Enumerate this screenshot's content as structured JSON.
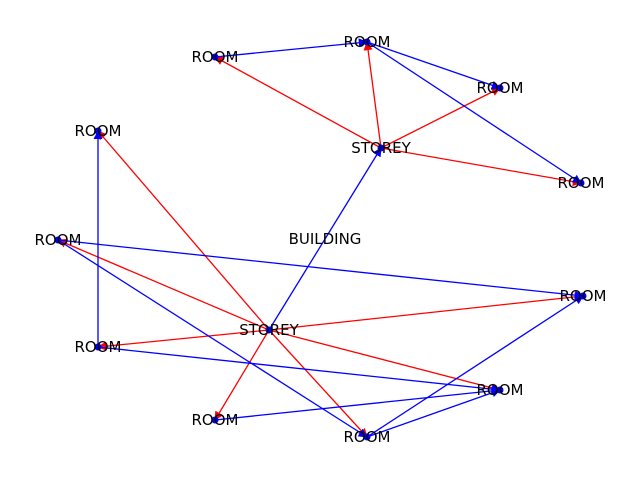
{
  "diagram_title": "",
  "colors": {
    "contains_edge": "#ff0000",
    "adjacent_edge": "#0000ff",
    "node_dot": "#0000ff",
    "label": "#000000",
    "background": "#ffffff"
  },
  "nodes": [
    {
      "id": "building",
      "label": "BUILDING"
    },
    {
      "id": "storey-1",
      "label": "STOREY"
    },
    {
      "id": "storey-2",
      "label": "STOREY"
    },
    {
      "id": "room-1",
      "label": "ROOM"
    },
    {
      "id": "room-2",
      "label": "ROOM"
    },
    {
      "id": "room-3",
      "label": "ROOM"
    },
    {
      "id": "room-4",
      "label": "ROOM"
    },
    {
      "id": "room-5",
      "label": "ROOM"
    },
    {
      "id": "room-6",
      "label": "ROOM"
    },
    {
      "id": "room-7",
      "label": "ROOM"
    },
    {
      "id": "room-8",
      "label": "ROOM"
    },
    {
      "id": "room-9",
      "label": "ROOM"
    },
    {
      "id": "room-10",
      "label": "ROOM"
    },
    {
      "id": "room-11",
      "label": "ROOM"
    }
  ],
  "edges": [
    {
      "from": "storey-1",
      "to": "room-1",
      "kind": "contains"
    },
    {
      "from": "storey-1",
      "to": "room-2",
      "kind": "contains"
    },
    {
      "from": "storey-1",
      "to": "room-3",
      "kind": "contains"
    },
    {
      "from": "storey-1",
      "to": "room-4",
      "kind": "contains"
    },
    {
      "from": "storey-2",
      "to": "room-5",
      "kind": "contains"
    },
    {
      "from": "storey-2",
      "to": "room-6",
      "kind": "contains"
    },
    {
      "from": "storey-2",
      "to": "room-7",
      "kind": "contains"
    },
    {
      "from": "storey-2",
      "to": "room-8",
      "kind": "contains"
    },
    {
      "from": "storey-2",
      "to": "room-9",
      "kind": "contains"
    },
    {
      "from": "storey-2",
      "to": "room-10",
      "kind": "contains"
    },
    {
      "from": "storey-2",
      "to": "room-11",
      "kind": "contains"
    },
    {
      "from": "storey-2",
      "to": "storey-1",
      "kind": "adjacent"
    },
    {
      "from": "room-2",
      "to": "room-1",
      "kind": "adjacent"
    },
    {
      "from": "room-1",
      "to": "room-3",
      "kind": "adjacent"
    },
    {
      "from": "room-1",
      "to": "room-4",
      "kind": "adjacent"
    },
    {
      "from": "room-7",
      "to": "room-5",
      "kind": "adjacent"
    },
    {
      "from": "room-6",
      "to": "room-8",
      "kind": "adjacent"
    },
    {
      "from": "room-6",
      "to": "room-11",
      "kind": "adjacent"
    },
    {
      "from": "room-7",
      "to": "room-9",
      "kind": "adjacent"
    },
    {
      "from": "room-10",
      "to": "room-9",
      "kind": "adjacent"
    },
    {
      "from": "room-11",
      "to": "room-9",
      "kind": "adjacent"
    },
    {
      "from": "room-11",
      "to": "room-8",
      "kind": "adjacent"
    }
  ]
}
